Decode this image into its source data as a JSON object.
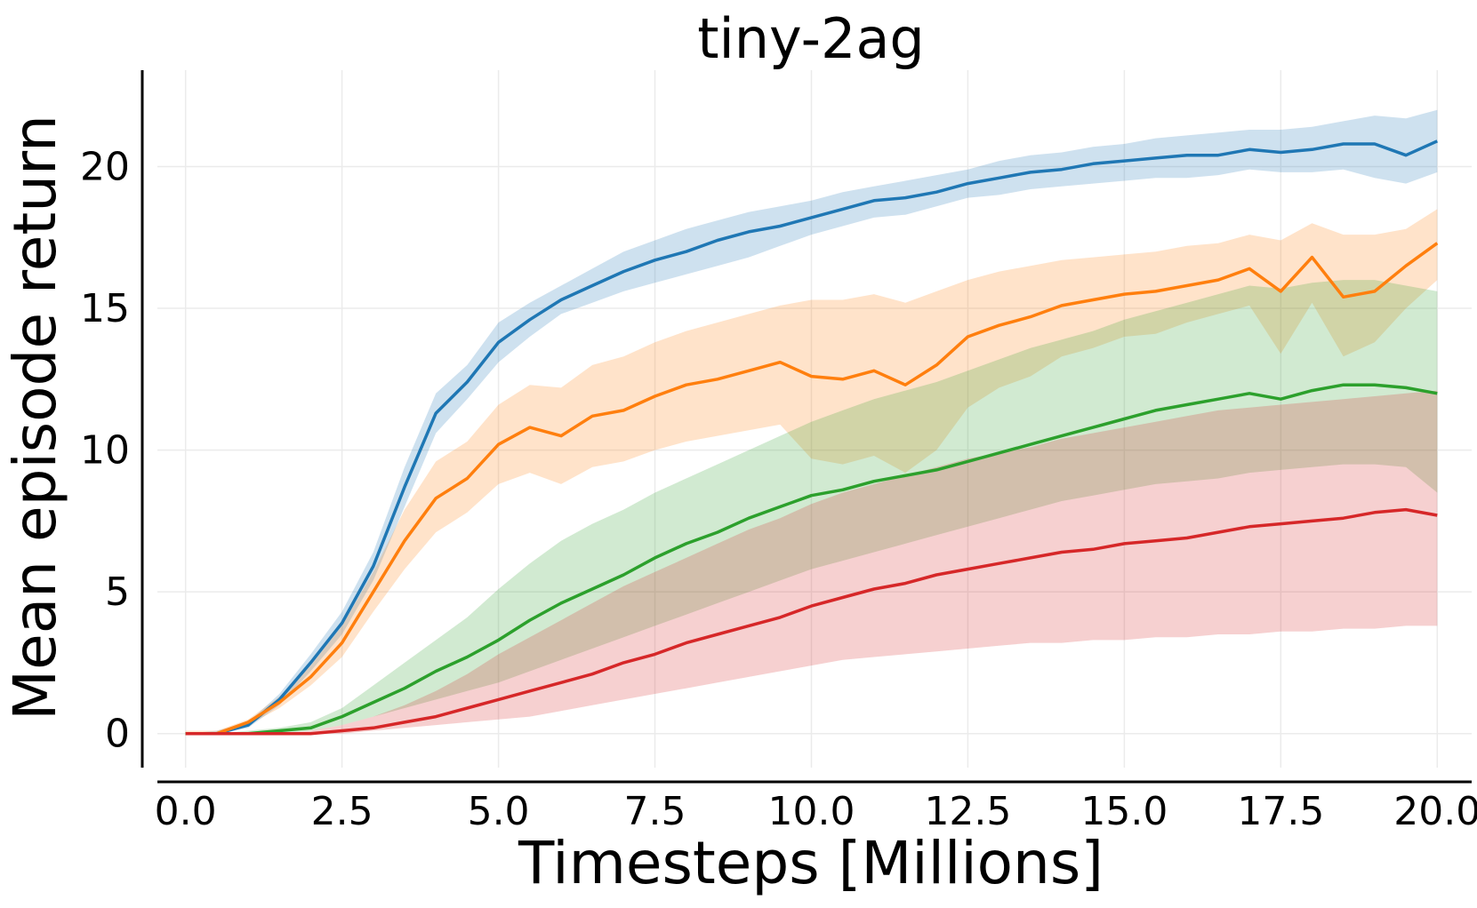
{
  "chart_data": {
    "type": "line",
    "title": "tiny-2ag",
    "xlabel": "Timesteps [Millions]",
    "ylabel": "Mean episode return",
    "xlim": [
      -0.45,
      20.55
    ],
    "ylim": [
      -1.2,
      23.4
    ],
    "xticks": [
      0.0,
      2.5,
      5.0,
      7.5,
      10.0,
      12.5,
      15.0,
      17.5,
      20.0
    ],
    "xtick_labels": [
      "0.0",
      "2.5",
      "5.0",
      "7.5",
      "10.0",
      "12.5",
      "15.0",
      "17.5",
      "20.0"
    ],
    "yticks": [
      0,
      5,
      10,
      15,
      20
    ],
    "ytick_labels": [
      "0",
      "5",
      "10",
      "15",
      "20"
    ],
    "grid": true,
    "legend": "none",
    "series": [
      {
        "color": "#1f77b4",
        "x": [
          0.0,
          0.5,
          1.0,
          1.5,
          2.0,
          2.5,
          3.0,
          3.5,
          4.0,
          4.5,
          5.0,
          5.5,
          6.0,
          6.5,
          7.0,
          7.5,
          8.0,
          8.5,
          9.0,
          9.5,
          10.0,
          10.5,
          11.0,
          11.5,
          12.0,
          12.5,
          13.0,
          13.5,
          14.0,
          14.5,
          15.0,
          15.5,
          16.0,
          16.5,
          17.0,
          17.5,
          18.0,
          18.5,
          19.0,
          19.5,
          20.0
        ],
        "y": [
          0.0,
          0.0,
          0.3,
          1.2,
          2.5,
          3.9,
          5.9,
          8.7,
          11.3,
          12.4,
          13.8,
          14.6,
          15.3,
          15.8,
          16.3,
          16.7,
          17.0,
          17.4,
          17.7,
          17.9,
          18.2,
          18.5,
          18.8,
          18.9,
          19.1,
          19.4,
          19.6,
          19.8,
          19.9,
          20.1,
          20.2,
          20.3,
          20.4,
          20.4,
          20.6,
          20.5,
          20.6,
          20.8,
          20.8,
          20.4,
          20.9
        ],
        "lower": [
          0.0,
          0.0,
          0.2,
          1.0,
          2.2,
          3.5,
          5.4,
          8.0,
          10.6,
          11.8,
          13.1,
          14.0,
          14.8,
          15.2,
          15.6,
          15.9,
          16.2,
          16.5,
          16.8,
          17.2,
          17.6,
          17.9,
          18.2,
          18.3,
          18.6,
          18.9,
          19.0,
          19.2,
          19.3,
          19.4,
          19.5,
          19.6,
          19.6,
          19.7,
          19.9,
          19.8,
          19.8,
          19.9,
          19.6,
          19.4,
          19.8
        ],
        "upper": [
          0.0,
          0.1,
          0.4,
          1.4,
          2.8,
          4.3,
          6.4,
          9.4,
          12.0,
          13.0,
          14.5,
          15.2,
          15.8,
          16.4,
          17.0,
          17.4,
          17.8,
          18.1,
          18.4,
          18.6,
          18.8,
          19.1,
          19.3,
          19.5,
          19.7,
          19.9,
          20.2,
          20.4,
          20.5,
          20.7,
          20.8,
          21.0,
          21.1,
          21.2,
          21.3,
          21.3,
          21.4,
          21.6,
          21.8,
          21.7,
          22.0
        ]
      },
      {
        "color": "#ff7f0e",
        "x": [
          0.0,
          0.5,
          1.0,
          1.5,
          2.0,
          2.5,
          3.0,
          3.5,
          4.0,
          4.5,
          5.0,
          5.5,
          6.0,
          6.5,
          7.0,
          7.5,
          8.0,
          8.5,
          9.0,
          9.5,
          10.0,
          10.5,
          11.0,
          11.5,
          12.0,
          12.5,
          13.0,
          13.5,
          14.0,
          14.5,
          15.0,
          15.5,
          16.0,
          16.5,
          17.0,
          17.5,
          18.0,
          18.5,
          19.0,
          19.5,
          20.0
        ],
        "y": [
          0.0,
          0.0,
          0.4,
          1.1,
          2.0,
          3.2,
          5.0,
          6.8,
          8.3,
          9.0,
          10.2,
          10.8,
          10.5,
          11.2,
          11.4,
          11.9,
          12.3,
          12.5,
          12.8,
          13.1,
          12.6,
          12.5,
          12.8,
          12.3,
          13.0,
          14.0,
          14.4,
          14.7,
          15.1,
          15.3,
          15.5,
          15.6,
          15.8,
          16.0,
          16.4,
          15.6,
          16.8,
          15.4,
          15.6,
          16.5,
          17.3
        ],
        "lower": [
          0.0,
          0.0,
          0.3,
          0.9,
          1.7,
          2.7,
          4.3,
          5.8,
          7.1,
          7.8,
          8.8,
          9.2,
          8.8,
          9.4,
          9.6,
          10.0,
          10.3,
          10.5,
          10.7,
          10.9,
          9.7,
          9.5,
          9.8,
          9.2,
          10.0,
          11.5,
          12.2,
          12.6,
          13.3,
          13.6,
          14.0,
          14.1,
          14.5,
          14.8,
          15.1,
          13.4,
          15.2,
          13.3,
          13.8,
          15.0,
          16.0
        ],
        "upper": [
          0.1,
          0.1,
          0.5,
          1.3,
          2.4,
          3.8,
          5.7,
          7.9,
          9.6,
          10.3,
          11.6,
          12.3,
          12.2,
          13.0,
          13.3,
          13.8,
          14.2,
          14.5,
          14.8,
          15.1,
          15.3,
          15.3,
          15.5,
          15.2,
          15.6,
          16.0,
          16.3,
          16.5,
          16.7,
          16.8,
          16.9,
          17.0,
          17.2,
          17.3,
          17.6,
          17.4,
          18.0,
          17.6,
          17.6,
          17.8,
          18.5
        ]
      },
      {
        "color": "#2ca02c",
        "x": [
          0.0,
          0.5,
          1.0,
          1.5,
          2.0,
          2.5,
          3.0,
          3.5,
          4.0,
          4.5,
          5.0,
          5.5,
          6.0,
          6.5,
          7.0,
          7.5,
          8.0,
          8.5,
          9.0,
          9.5,
          10.0,
          10.5,
          11.0,
          11.5,
          12.0,
          12.5,
          13.0,
          13.5,
          14.0,
          14.5,
          15.0,
          15.5,
          16.0,
          16.5,
          17.0,
          17.5,
          18.0,
          18.5,
          19.0,
          19.5,
          20.0
        ],
        "y": [
          0.0,
          0.0,
          0.0,
          0.1,
          0.2,
          0.6,
          1.1,
          1.6,
          2.2,
          2.7,
          3.3,
          4.0,
          4.6,
          5.1,
          5.6,
          6.2,
          6.7,
          7.1,
          7.6,
          8.0,
          8.4,
          8.6,
          8.9,
          9.1,
          9.3,
          9.6,
          9.9,
          10.2,
          10.5,
          10.8,
          11.1,
          11.4,
          11.6,
          11.8,
          12.0,
          11.8,
          12.1,
          12.3,
          12.3,
          12.2,
          12.0
        ],
        "lower": [
          0.0,
          0.0,
          0.0,
          0.0,
          0.1,
          0.3,
          0.6,
          0.9,
          1.2,
          1.5,
          1.8,
          2.2,
          2.6,
          3.0,
          3.4,
          3.8,
          4.2,
          4.6,
          5.0,
          5.4,
          5.8,
          6.1,
          6.4,
          6.7,
          7.0,
          7.3,
          7.6,
          7.9,
          8.2,
          8.4,
          8.6,
          8.8,
          8.9,
          9.0,
          9.2,
          9.3,
          9.4,
          9.5,
          9.5,
          9.4,
          8.5
        ],
        "upper": [
          0.0,
          0.0,
          0.1,
          0.2,
          0.4,
          0.9,
          1.7,
          2.5,
          3.3,
          4.1,
          5.1,
          6.0,
          6.8,
          7.4,
          7.9,
          8.5,
          9.0,
          9.5,
          10.0,
          10.5,
          11.0,
          11.4,
          11.8,
          12.1,
          12.4,
          12.8,
          13.2,
          13.6,
          13.9,
          14.2,
          14.6,
          14.9,
          15.2,
          15.5,
          15.8,
          15.7,
          15.9,
          16.0,
          16.0,
          15.8,
          15.6
        ]
      },
      {
        "color": "#d62728",
        "x": [
          0.0,
          0.5,
          1.0,
          1.5,
          2.0,
          2.5,
          3.0,
          3.5,
          4.0,
          4.5,
          5.0,
          5.5,
          6.0,
          6.5,
          7.0,
          7.5,
          8.0,
          8.5,
          9.0,
          9.5,
          10.0,
          10.5,
          11.0,
          11.5,
          12.0,
          12.5,
          13.0,
          13.5,
          14.0,
          14.5,
          15.0,
          15.5,
          16.0,
          16.5,
          17.0,
          17.5,
          18.0,
          18.5,
          19.0,
          19.5,
          20.0
        ],
        "y": [
          0.0,
          0.0,
          0.0,
          0.0,
          0.0,
          0.1,
          0.2,
          0.4,
          0.6,
          0.9,
          1.2,
          1.5,
          1.8,
          2.1,
          2.5,
          2.8,
          3.2,
          3.5,
          3.8,
          4.1,
          4.5,
          4.8,
          5.1,
          5.3,
          5.6,
          5.8,
          6.0,
          6.2,
          6.4,
          6.5,
          6.7,
          6.8,
          6.9,
          7.1,
          7.3,
          7.4,
          7.5,
          7.6,
          7.8,
          7.9,
          7.7
        ],
        "lower": [
          0.0,
          0.0,
          0.0,
          0.0,
          0.0,
          0.0,
          0.1,
          0.2,
          0.3,
          0.4,
          0.5,
          0.6,
          0.8,
          1.0,
          1.2,
          1.4,
          1.6,
          1.8,
          2.0,
          2.2,
          2.4,
          2.6,
          2.7,
          2.8,
          2.9,
          3.0,
          3.1,
          3.2,
          3.2,
          3.3,
          3.3,
          3.4,
          3.4,
          3.5,
          3.5,
          3.6,
          3.6,
          3.7,
          3.7,
          3.8,
          3.8
        ],
        "upper": [
          0.0,
          0.0,
          0.0,
          0.0,
          0.1,
          0.3,
          0.6,
          1.0,
          1.5,
          2.1,
          2.8,
          3.4,
          4.0,
          4.6,
          5.2,
          5.7,
          6.2,
          6.7,
          7.2,
          7.6,
          8.1,
          8.5,
          8.8,
          9.1,
          9.4,
          9.7,
          9.9,
          10.1,
          10.4,
          10.6,
          10.8,
          11.0,
          11.2,
          11.4,
          11.5,
          11.6,
          11.7,
          11.8,
          11.9,
          12.0,
          12.1
        ]
      }
    ]
  }
}
